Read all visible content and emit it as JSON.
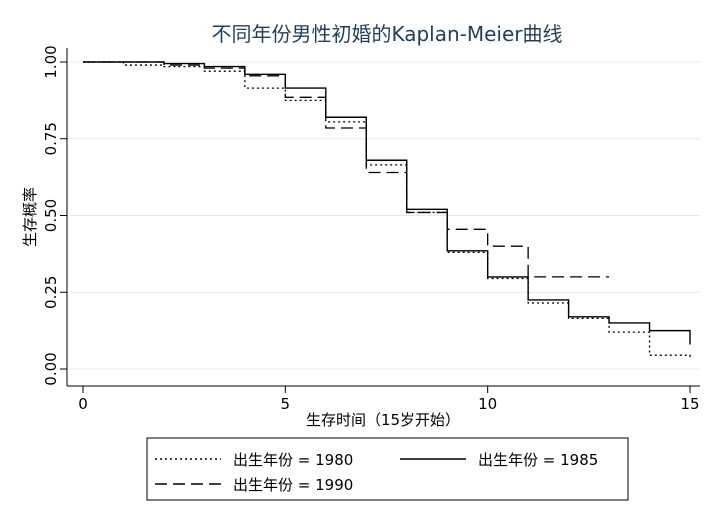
{
  "chart_data": {
    "type": "line",
    "step": true,
    "title": "不同年份男性初婚的Kaplan-Meier曲线",
    "xlabel": "生存时间（15岁开始）",
    "ylabel": "生存概率",
    "xlim": [
      0,
      15
    ],
    "ylim": [
      0,
      1
    ],
    "xticks": [
      0,
      5,
      10,
      15
    ],
    "yticks": [
      0,
      0.25,
      0.5,
      0.75,
      1
    ],
    "ytick_labels": [
      "0.00",
      "0.25",
      "0.50",
      "0.75",
      "1.00"
    ],
    "grid": "horizontal",
    "legend_position": "bottom",
    "series": [
      {
        "name": "出生年份 = 1980",
        "style": "dotted",
        "color": "#000000",
        "x": [
          0,
          1,
          2,
          3,
          4,
          5,
          6,
          7,
          8,
          9,
          10,
          11,
          12,
          13,
          14,
          15
        ],
        "y": [
          1.0,
          0.99,
          0.985,
          0.97,
          0.915,
          0.875,
          0.805,
          0.665,
          0.51,
          0.38,
          0.295,
          0.215,
          0.165,
          0.12,
          0.045,
          0.03
        ]
      },
      {
        "name": "出生年份 = 1985",
        "style": "solid",
        "color": "#000000",
        "x": [
          0,
          1,
          2,
          3,
          4,
          5,
          6,
          7,
          8,
          9,
          10,
          11,
          12,
          13,
          14,
          15
        ],
        "y": [
          1.0,
          1.0,
          0.995,
          0.985,
          0.96,
          0.915,
          0.82,
          0.68,
          0.52,
          0.385,
          0.3,
          0.225,
          0.17,
          0.15,
          0.125,
          0.08
        ]
      },
      {
        "name": "出生年份 = 1990",
        "style": "dashed",
        "color": "#000000",
        "x": [
          0,
          1,
          2,
          3,
          4,
          5,
          6,
          7,
          8,
          9,
          10,
          11,
          12,
          13
        ],
        "y": [
          1.0,
          1.0,
          0.99,
          0.98,
          0.955,
          0.885,
          0.785,
          0.64,
          0.51,
          0.455,
          0.4,
          0.3,
          0.3,
          0.3
        ]
      }
    ]
  }
}
